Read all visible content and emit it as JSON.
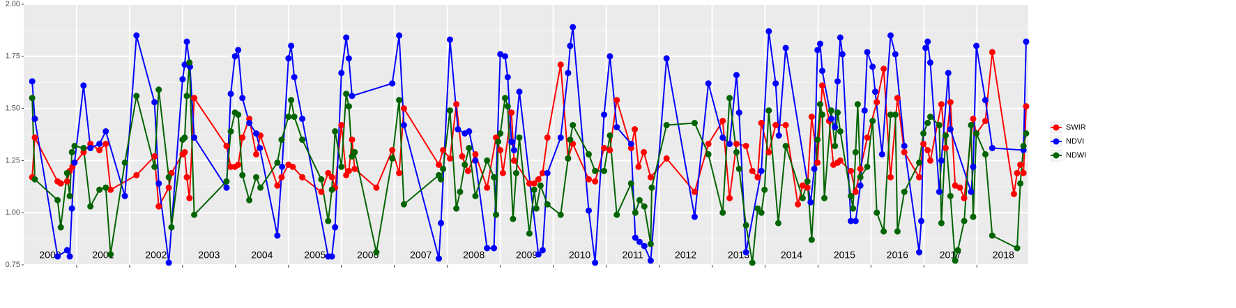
{
  "chart_data": {
    "type": "line",
    "xlim": [
      2000,
      2018.97
    ],
    "xticks": [
      2001,
      2002,
      2003,
      2004,
      2005,
      2006,
      2007,
      2008,
      2009,
      2010,
      2011,
      2012,
      2013,
      2014,
      2015,
      2016,
      2017,
      2018
    ],
    "ylim": [
      0.75,
      2.0
    ],
    "yticks": [
      0.75,
      {
        "value": 1.0,
        "label": "1.00"
      },
      1.25,
      {
        "value": 1.5,
        "label": "1.50"
      },
      1.75,
      {
        "value": 2.0,
        "label": "2.00"
      }
    ],
    "grid": true,
    "legend": "right",
    "year_labels": [
      "2000",
      "2001",
      "2002",
      "2003",
      "2004",
      "2005",
      "2006",
      "2007",
      "2008",
      "2009",
      "2010",
      "2011",
      "2012",
      "2013",
      "2014",
      "2015",
      "2016",
      "2017",
      "2018"
    ],
    "series": [
      {
        "name": "SWIR",
        "color": "#ff0000",
        "x": [
          2000.16,
          2000.21,
          2000.64,
          2000.7,
          2000.82,
          2000.87,
          2000.92,
          2001.13,
          2001.26,
          2001.43,
          2001.55,
          2001.64,
          2002.13,
          2002.47,
          2002.55,
          2002.74,
          2002.79,
          2003.0,
          2003.04,
          2003.08,
          2003.13,
          2003.22,
          2003.83,
          2003.91,
          2003.99,
          2004.05,
          2004.13,
          2004.26,
          2004.39,
          2004.47,
          2004.79,
          2004.87,
          2005.0,
          2005.08,
          2005.26,
          2005.62,
          2005.75,
          2005.82,
          2005.88,
          2006.0,
          2006.09,
          2006.14,
          2006.2,
          2006.25,
          2006.66,
          2006.96,
          2007.09,
          2007.18,
          2007.84,
          2007.92,
          2008.05,
          2008.17,
          2008.28,
          2008.39,
          2008.53,
          2008.75,
          2008.92,
          2009.0,
          2009.05,
          2009.21,
          2009.26,
          2009.55,
          2009.64,
          2009.72,
          2009.8,
          2009.89,
          2010.14,
          2010.28,
          2010.37,
          2010.67,
          2010.79,
          2010.96,
          2011.07,
          2011.2,
          2011.47,
          2011.54,
          2011.61,
          2011.71,
          2011.84,
          2012.14,
          2012.67,
          2012.93,
          2013.2,
          2013.33,
          2013.46,
          2013.64,
          2013.76,
          2013.86,
          2013.93,
          2014.07,
          2014.2,
          2014.39,
          2014.62,
          2014.71,
          2014.8,
          2014.88,
          2014.99,
          2015.08,
          2015.21,
          2015.29,
          2015.37,
          2015.42,
          2015.62,
          2015.71,
          2015.8,
          2015.93,
          2016.11,
          2016.24,
          2016.37,
          2016.5,
          2016.63,
          2016.91,
          2016.99,
          2017.07,
          2017.12,
          2017.33,
          2017.41,
          2017.5,
          2017.59,
          2017.68,
          2017.76,
          2017.93,
          2017.99,
          2018.16,
          2018.29,
          2018.7,
          2018.76,
          2018.82,
          2018.88,
          2018.93
        ],
        "values": [
          1.17,
          1.36,
          1.15,
          1.14,
          1.15,
          1.2,
          1.22,
          1.29,
          1.33,
          1.3,
          1.33,
          1.11,
          1.18,
          1.27,
          1.03,
          1.12,
          1.19,
          1.28,
          1.29,
          1.17,
          1.07,
          1.55,
          1.32,
          1.22,
          1.22,
          1.23,
          1.36,
          1.45,
          1.28,
          1.37,
          1.13,
          1.17,
          1.23,
          1.22,
          1.17,
          1.1,
          1.19,
          1.17,
          1.12,
          1.42,
          1.18,
          1.2,
          1.35,
          1.21,
          1.12,
          1.3,
          1.19,
          1.5,
          1.23,
          1.3,
          1.26,
          1.52,
          1.27,
          1.2,
          1.28,
          1.12,
          1.36,
          1.3,
          1.19,
          1.48,
          1.25,
          1.14,
          1.14,
          1.16,
          1.19,
          1.36,
          1.71,
          1.26,
          1.33,
          1.16,
          1.15,
          1.31,
          1.3,
          1.54,
          1.31,
          1.4,
          1.22,
          1.29,
          1.17,
          1.26,
          1.1,
          1.33,
          1.44,
          1.07,
          1.33,
          1.32,
          1.2,
          1.17,
          1.43,
          1.29,
          1.42,
          1.42,
          1.04,
          1.13,
          1.12,
          1.46,
          1.24,
          1.61,
          1.44,
          1.23,
          1.24,
          1.25,
          1.2,
          1.1,
          1.21,
          1.36,
          1.53,
          1.69,
          1.17,
          1.55,
          1.29,
          1.17,
          1.33,
          1.3,
          1.25,
          1.52,
          1.31,
          1.53,
          1.13,
          1.12,
          1.07,
          1.45,
          1.38,
          1.44,
          1.77,
          1.09,
          1.19,
          1.23,
          1.19,
          1.51
        ]
      },
      {
        "name": "NDVI",
        "color": "#0000ff",
        "x": [
          2000.16,
          2000.21,
          2000.64,
          2000.82,
          2000.87,
          2000.91,
          2000.96,
          2001.13,
          2001.26,
          2001.43,
          2001.55,
          2001.91,
          2002.13,
          2002.47,
          2002.55,
          2002.74,
          2003.0,
          2003.04,
          2003.08,
          2003.14,
          2003.22,
          2003.83,
          2003.91,
          2003.99,
          2004.05,
          2004.13,
          2004.26,
          2004.39,
          2004.46,
          2004.79,
          2004.88,
          2005.0,
          2005.05,
          2005.11,
          2005.26,
          2005.75,
          2005.82,
          2005.88,
          2006.0,
          2006.09,
          2006.14,
          2006.2,
          2006.96,
          2007.09,
          2007.18,
          2007.84,
          2007.88,
          2008.05,
          2008.2,
          2008.33,
          2008.41,
          2008.53,
          2008.75,
          2008.88,
          2009.0,
          2009.09,
          2009.14,
          2009.21,
          2009.26,
          2009.36,
          2009.72,
          2009.8,
          2009.89,
          2010.14,
          2010.28,
          2010.32,
          2010.37,
          2010.67,
          2010.79,
          2010.96,
          2011.07,
          2011.2,
          2011.47,
          2011.55,
          2011.63,
          2011.72,
          2011.84,
          2012.14,
          2012.67,
          2012.93,
          2013.2,
          2013.33,
          2013.46,
          2013.51,
          2013.64,
          2013.93,
          2014.07,
          2014.2,
          2014.26,
          2014.39,
          2014.86,
          2014.93,
          2014.99,
          2015.04,
          2015.08,
          2015.25,
          2015.32,
          2015.37,
          2015.42,
          2015.46,
          2015.62,
          2015.71,
          2015.8,
          2015.88,
          2015.93,
          2016.03,
          2016.08,
          2016.21,
          2016.37,
          2016.46,
          2016.63,
          2016.91,
          2016.95,
          2017.03,
          2017.07,
          2017.12,
          2017.29,
          2017.33,
          2017.46,
          2017.5,
          2017.89,
          2017.93,
          2017.99,
          2018.16,
          2018.29,
          2018.88,
          2018.93
        ],
        "values": [
          1.63,
          1.45,
          0.79,
          0.82,
          0.79,
          1.02,
          1.24,
          1.61,
          1.31,
          1.33,
          1.39,
          1.08,
          1.85,
          1.53,
          1.14,
          0.76,
          1.64,
          1.71,
          1.82,
          1.7,
          1.36,
          1.12,
          1.57,
          1.75,
          1.78,
          1.55,
          1.43,
          1.38,
          1.31,
          0.89,
          1.22,
          1.74,
          1.8,
          1.65,
          1.45,
          0.79,
          0.79,
          0.93,
          1.67,
          1.84,
          1.74,
          1.56,
          1.62,
          1.85,
          1.42,
          0.78,
          0.95,
          1.83,
          1.4,
          1.38,
          1.39,
          1.25,
          0.83,
          0.83,
          1.76,
          1.75,
          1.65,
          1.34,
          1.3,
          1.58,
          0.8,
          0.82,
          1.19,
          1.36,
          1.67,
          1.8,
          1.89,
          1.01,
          0.76,
          1.47,
          1.75,
          1.41,
          1.33,
          0.88,
          0.86,
          0.84,
          0.77,
          1.74,
          0.98,
          1.62,
          1.36,
          1.33,
          1.66,
          1.48,
          0.81,
          1.2,
          1.87,
          1.62,
          1.37,
          1.79,
          1.05,
          1.21,
          1.78,
          1.81,
          1.68,
          1.45,
          1.41,
          1.63,
          1.84,
          1.76,
          0.96,
          0.96,
          1.13,
          1.49,
          1.77,
          1.7,
          1.58,
          1.28,
          1.85,
          1.76,
          1.32,
          0.81,
          0.96,
          1.79,
          1.82,
          1.72,
          1.1,
          1.25,
          1.67,
          1.4,
          1.1,
          1.22,
          1.8,
          1.54,
          1.31,
          1.3,
          1.82
        ]
      },
      {
        "name": "NDWI",
        "color": "#006400",
        "x": [
          2000.16,
          2000.21,
          2000.64,
          2000.7,
          2000.82,
          2000.87,
          2000.91,
          2000.96,
          2001.13,
          2001.26,
          2001.43,
          2001.55,
          2001.64,
          2001.91,
          2002.13,
          2002.47,
          2002.55,
          2002.74,
          2002.79,
          2003.0,
          2003.04,
          2003.08,
          2003.13,
          2003.22,
          2003.83,
          2003.91,
          2003.99,
          2004.05,
          2004.13,
          2004.26,
          2004.39,
          2004.47,
          2004.79,
          2004.87,
          2005.0,
          2005.05,
          2005.11,
          2005.26,
          2005.62,
          2005.75,
          2005.82,
          2005.88,
          2006.0,
          2006.09,
          2006.14,
          2006.2,
          2006.25,
          2006.66,
          2006.96,
          2007.09,
          2007.18,
          2007.84,
          2007.88,
          2007.92,
          2008.05,
          2008.17,
          2008.24,
          2008.33,
          2008.41,
          2008.53,
          2008.75,
          2008.88,
          2008.92,
          2008.96,
          2009.0,
          2009.09,
          2009.14,
          2009.24,
          2009.3,
          2009.36,
          2009.55,
          2009.64,
          2009.68,
          2009.76,
          2009.89,
          2010.14,
          2010.28,
          2010.32,
          2010.37,
          2010.67,
          2010.79,
          2010.96,
          2011.07,
          2011.2,
          2011.47,
          2011.55,
          2011.63,
          2011.72,
          2011.84,
          2011.86,
          2012.14,
          2012.67,
          2012.93,
          2013.2,
          2013.33,
          2013.46,
          2013.51,
          2013.64,
          2013.76,
          2013.86,
          2013.93,
          2013.99,
          2014.07,
          2014.25,
          2014.39,
          2014.71,
          2014.8,
          2014.88,
          2014.99,
          2015.04,
          2015.08,
          2015.12,
          2015.25,
          2015.32,
          2015.37,
          2015.42,
          2015.62,
          2015.66,
          2015.71,
          2015.75,
          2015.8,
          2015.93,
          2016.03,
          2016.11,
          2016.24,
          2016.37,
          2016.46,
          2016.5,
          2016.63,
          2016.91,
          2016.99,
          2017.07,
          2017.12,
          2017.29,
          2017.33,
          2017.41,
          2017.5,
          2017.59,
          2017.64,
          2017.76,
          2017.89,
          2017.93,
          2017.99,
          2018.16,
          2018.29,
          2018.76,
          2018.82,
          2018.88,
          2018.93
        ],
        "values": [
          1.55,
          1.16,
          1.06,
          0.93,
          1.19,
          1.08,
          1.29,
          1.32,
          1.31,
          1.03,
          1.11,
          1.12,
          0.8,
          1.24,
          1.56,
          1.22,
          1.59,
          1.17,
          0.93,
          1.35,
          1.36,
          1.56,
          1.72,
          0.99,
          1.15,
          1.39,
          1.48,
          1.47,
          1.18,
          1.06,
          1.17,
          1.12,
          1.24,
          1.35,
          1.46,
          1.54,
          1.46,
          1.35,
          1.16,
          0.96,
          1.11,
          1.39,
          1.22,
          1.57,
          1.51,
          1.27,
          1.29,
          0.81,
          1.26,
          1.54,
          1.04,
          1.18,
          1.16,
          1.21,
          1.49,
          1.02,
          1.1,
          1.23,
          1.31,
          1.08,
          1.25,
          1.17,
          0.99,
          1.34,
          1.38,
          1.55,
          1.51,
          0.97,
          1.19,
          1.36,
          0.9,
          1.11,
          1.02,
          1.13,
          1.04,
          0.99,
          1.26,
          1.35,
          1.42,
          1.28,
          1.2,
          1.2,
          1.37,
          0.99,
          1.14,
          1.0,
          1.06,
          1.03,
          0.85,
          1.12,
          1.42,
          1.43,
          1.28,
          1.0,
          1.55,
          1.29,
          1.21,
          0.94,
          0.76,
          1.02,
          1.0,
          1.11,
          1.49,
          0.95,
          1.32,
          1.07,
          1.15,
          0.87,
          1.35,
          1.52,
          1.47,
          1.07,
          1.49,
          1.32,
          1.48,
          1.39,
          1.08,
          1.02,
          1.29,
          1.52,
          1.17,
          1.22,
          1.44,
          1.0,
          0.91,
          1.47,
          1.47,
          0.91,
          1.1,
          1.24,
          1.38,
          1.43,
          1.46,
          1.42,
          0.95,
          1.37,
          1.08,
          0.77,
          0.82,
          0.96,
          1.42,
          0.98,
          1.38,
          1.28,
          0.89,
          0.83,
          1.14,
          1.32,
          1.38
        ]
      }
    ]
  }
}
